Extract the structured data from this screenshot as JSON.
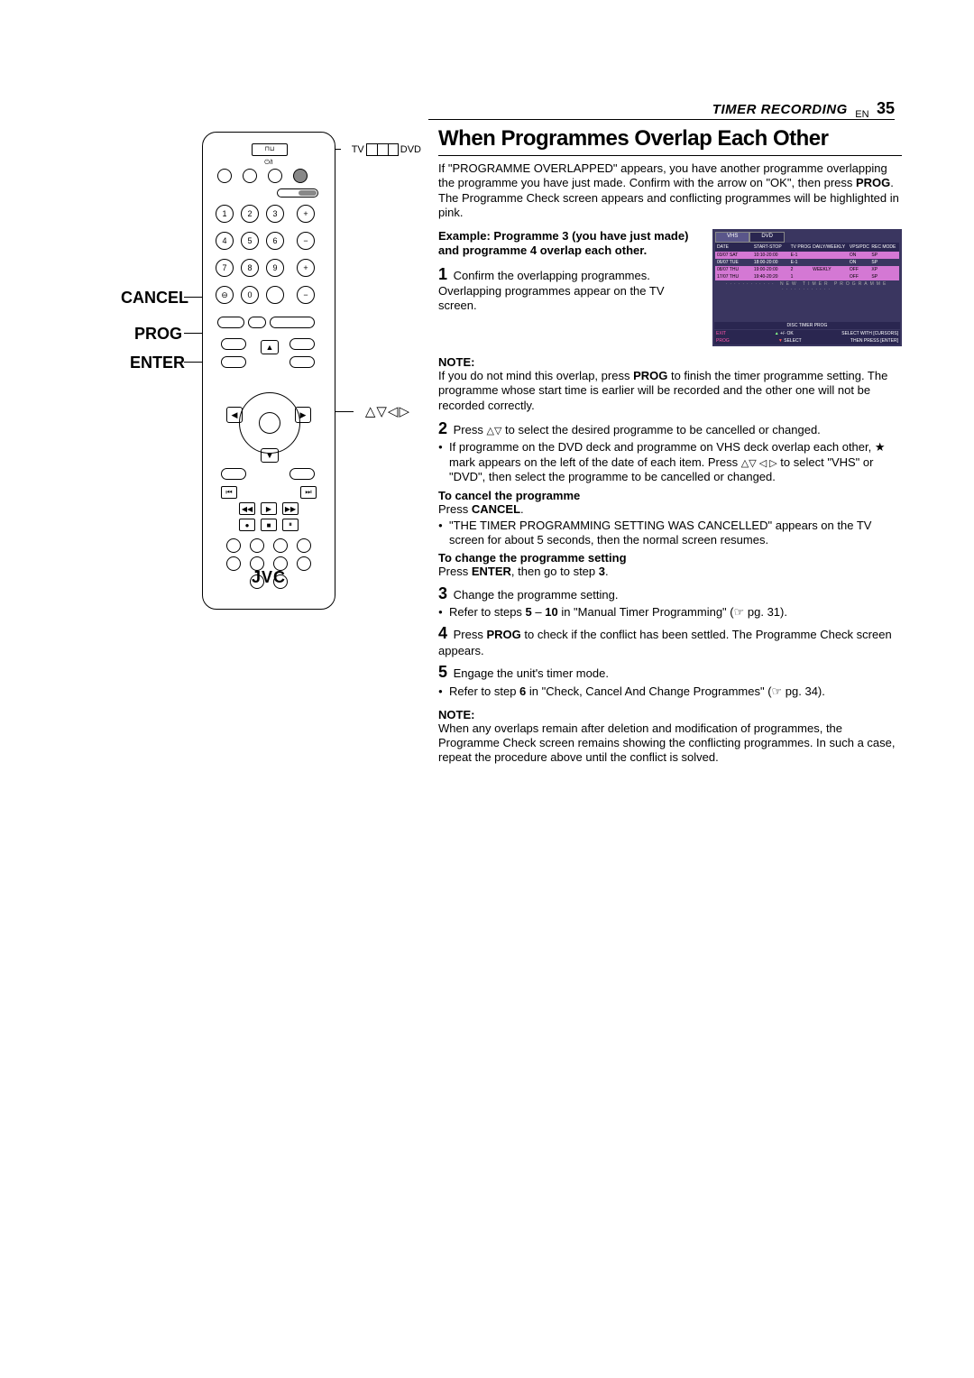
{
  "header": {
    "section": "TIMER RECORDING",
    "lang": "EN",
    "pagenum": "35"
  },
  "callouts": {
    "cancel": "CANCEL",
    "prog": "PROG",
    "enter": "ENTER",
    "tv": "TV",
    "dvd": "DVD"
  },
  "remote": {
    "logo": "JVC",
    "display_icon": "⊓⊔",
    "power_icon": "⏻/I",
    "keys": [
      "1",
      "2",
      "3",
      "4",
      "5",
      "6",
      "7",
      "8",
      "9",
      "0"
    ],
    "plus": "+",
    "minus": "−",
    "dpad_glyphs": "△▽◁▷"
  },
  "title": "When Programmes Overlap Each Other",
  "intro": "If \"PROGRAMME OVERLAPPED\" appears, you have another programme overlapping the programme you have just made. Confirm with the arrow on \"OK\", then press PROG. The Programme Check screen appears and conflicting programmes will be highlighted in pink.",
  "example": {
    "bold": "Example: Programme 3 (you have just made) and programme 4 overlap each other.",
    "step1_num": "1",
    "step1_text": " Confirm the overlapping programmes. Overlapping programmes appear on the TV screen."
  },
  "screen": {
    "tabs": [
      "VHS",
      "DVD"
    ],
    "headers": [
      "DATE",
      "START-STOP",
      "TV PROG",
      "DAILY/WEEKLY",
      "VPS/PDC",
      "REC MODE"
    ],
    "rows": [
      {
        "pink": true,
        "cells": [
          "03/07 SAT",
          "10:10-20:00",
          "E-1",
          "",
          "ON",
          "SP"
        ]
      },
      {
        "pink": false,
        "cells": [
          "06/07 TUE",
          "18:00-20:00",
          "E-1",
          "",
          "ON",
          "SP"
        ]
      },
      {
        "pink": true,
        "cells": [
          "08/07 THU",
          "19:00-20:00",
          "2",
          "WEEKLY",
          "OFF",
          "XP"
        ]
      },
      {
        "pink": true,
        "cells": [
          "17/07 THU",
          "19:40-20:20",
          "1",
          "",
          "OFF",
          "SP"
        ]
      }
    ],
    "new_prog": "············ NEW TIMER PROGRAMME ············",
    "footer_center": "DISC TIMER PROG",
    "footer_left1": "EXIT",
    "footer_left2": "PROG",
    "footer_mid1": "+/- OK",
    "footer_mid2": "SELECT",
    "footer_right1": "SELECT WITH [CURSORS]",
    "footer_right2": "THEN PRESS [ENTER]"
  },
  "note1_label": "NOTE:",
  "note1_text": "If you do not mind this overlap, press PROG to finish the timer programme setting. The programme whose start time is earlier will be recorded and the other one will not be recorded correctly.",
  "step2_num": "2",
  "step2_text": " Press △▽ to select the desired programme to be cancelled or changed.",
  "step2_bullets": [
    "If programme on the DVD deck and programme on VHS deck overlap each other, ★ mark appears on the left of the date of each item. Press △▽ ◁ ▷ to select \"VHS\" or \"DVD\", then select the programme to be cancelled or changed."
  ],
  "cancel_title": "To cancel the programme",
  "cancel_text": "Press CANCEL.",
  "cancel_bullets": [
    "\"THE TIMER PROGRAMMING SETTING WAS CANCELLED\" appears on the TV screen for about 5 seconds, then the normal screen resumes."
  ],
  "change_title": "To change the programme setting",
  "change_text": "Press ENTER, then go to step 3.",
  "step3_num": "3",
  "step3_text": " Change the programme setting.",
  "step3_bullets": [
    "Refer to steps 5 – 10 in \"Manual Timer Programming\" (☞ pg. 31)."
  ],
  "step4_num": "4",
  "step4_text": " Press PROG to check if the conflict has been settled. The Programme Check screen appears.",
  "step5_num": "5",
  "step5_text": " Engage the unit's timer mode.",
  "step5_bullets": [
    "Refer to step 6 in \"Check, Cancel And Change Programmes\" (☞ pg. 34)."
  ],
  "note2_label": "NOTE:",
  "note2_text": "When any overlaps remain after deletion and modification of programmes, the Programme Check screen remains showing the conflicting programmes. In such a case, repeat the procedure above until the conflict is solved."
}
